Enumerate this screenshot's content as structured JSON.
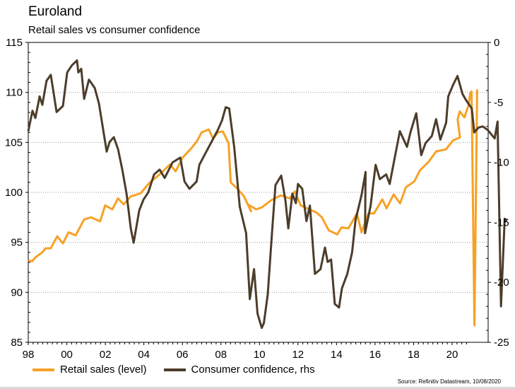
{
  "chart_data": {
    "type": "line",
    "title": "Euroland",
    "subtitle": "Retail sales vs consumer confidence",
    "xlabel": "",
    "ylabel": "",
    "x_ticks": [
      "98",
      "00",
      "02",
      "04",
      "06",
      "08",
      "10",
      "12",
      "14",
      "16",
      "18",
      "20"
    ],
    "x_tick_years": [
      1998,
      2000,
      2002,
      2004,
      2006,
      2008,
      2010,
      2012,
      2014,
      2016,
      2018,
      2020
    ],
    "xlim": [
      1998,
      2020.85
    ],
    "left_axis": {
      "ylim": [
        85,
        115
      ],
      "ticks": [
        85,
        90,
        95,
        100,
        105,
        110,
        115
      ]
    },
    "right_axis": {
      "ylim": [
        -25,
        0
      ],
      "ticks": [
        -25,
        -20,
        -15,
        -10,
        -5,
        0
      ]
    },
    "grid": "horizontal dotted",
    "legend_position": "bottom-left",
    "series": [
      {
        "name": "Retail sales (level)",
        "axis": "left",
        "color": "#F7A125",
        "points": [
          [
            1998.0,
            93.2
          ],
          [
            1998.2,
            93.1
          ],
          [
            1998.37,
            93.5
          ],
          [
            1998.73,
            94.0
          ],
          [
            1998.9,
            94.4
          ],
          [
            1999.17,
            94.4
          ],
          [
            1999.5,
            95.6
          ],
          [
            1999.8,
            94.9
          ],
          [
            2000.09,
            96.0
          ],
          [
            2000.46,
            95.7
          ],
          [
            2000.9,
            97.3
          ],
          [
            2001.26,
            97.5
          ],
          [
            2001.73,
            97.1
          ],
          [
            2001.99,
            98.7
          ],
          [
            2002.36,
            98.3
          ],
          [
            2002.66,
            99.4
          ],
          [
            2002.95,
            98.8
          ],
          [
            2003.32,
            99.6
          ],
          [
            2003.83,
            99.9
          ],
          [
            2004.31,
            101.0
          ],
          [
            2004.82,
            101.8
          ],
          [
            2005.36,
            102.8
          ],
          [
            2005.65,
            102.1
          ],
          [
            2006.02,
            103.5
          ],
          [
            2006.46,
            104.4
          ],
          [
            2006.75,
            105.1
          ],
          [
            2007.0,
            106.0
          ],
          [
            2007.37,
            106.3
          ],
          [
            2007.59,
            105.4
          ],
          [
            2007.85,
            106.0
          ],
          [
            2008.1,
            106.1
          ],
          [
            2008.4,
            104.9
          ],
          [
            2008.51,
            101.0
          ],
          [
            2008.84,
            100.4
          ],
          [
            2009.2,
            99.6
          ],
          [
            2009.57,
            98.1
          ],
          [
            2009.4,
            98.8
          ],
          [
            2009.83,
            98.3
          ],
          [
            2010.13,
            98.5
          ],
          [
            2010.6,
            99.2
          ],
          [
            2011.11,
            99.7
          ],
          [
            2011.58,
            99.4
          ],
          [
            2011.84,
            100.1
          ],
          [
            2012.14,
            98.7
          ],
          [
            2012.58,
            98.3
          ],
          [
            2012.95,
            98.0
          ],
          [
            2013.24,
            97.5
          ],
          [
            2013.6,
            96.2
          ],
          [
            2014.04,
            95.8
          ],
          [
            2014.26,
            96.5
          ],
          [
            2014.62,
            96.4
          ],
          [
            2015.06,
            97.9
          ],
          [
            2015.3,
            96.0
          ],
          [
            2015.66,
            97.9
          ],
          [
            2015.95,
            97.9
          ],
          [
            2016.38,
            99.3
          ],
          [
            2016.6,
            98.4
          ],
          [
            2016.97,
            99.8
          ],
          [
            2017.3,
            98.9
          ],
          [
            2017.6,
            100.5
          ],
          [
            2018.04,
            101.1
          ],
          [
            2018.33,
            102.2
          ],
          [
            2018.8,
            103.1
          ],
          [
            2019.17,
            104.1
          ],
          [
            2019.68,
            104.3
          ],
          [
            2020.05,
            105.2
          ],
          [
            2020.41,
            105.5
          ],
          [
            2020.29,
            107.3
          ],
          [
            2020.4,
            108.1
          ],
          [
            2020.64,
            107.5
          ],
          [
            2020.85,
            108.7
          ],
          [
            2020.94,
            109.9
          ],
          [
            2021.01,
            110.1
          ],
          [
            2021.16,
            86.7
          ],
          [
            2021.3,
            110.3
          ]
        ]
      },
      {
        "name": "Consumer confidence, rhs",
        "axis": "right",
        "color": "#4B3D2A",
        "points": [
          [
            1998.0,
            -7.4
          ],
          [
            1998.22,
            -5.7
          ],
          [
            1998.37,
            -6.3
          ],
          [
            1998.59,
            -4.5
          ],
          [
            1998.73,
            -5.2
          ],
          [
            1998.95,
            -3.2
          ],
          [
            1999.17,
            -2.7
          ],
          [
            1999.47,
            -5.8
          ],
          [
            1999.8,
            -5.3
          ],
          [
            2000.02,
            -2.5
          ],
          [
            2000.27,
            -1.9
          ],
          [
            2000.53,
            -1.5
          ],
          [
            2000.6,
            -2.5
          ],
          [
            2000.75,
            -2.2
          ],
          [
            2000.9,
            -4.7
          ],
          [
            2001.15,
            -3.1
          ],
          [
            2001.45,
            -3.8
          ],
          [
            2001.67,
            -5.1
          ],
          [
            2001.89,
            -7.3
          ],
          [
            2002.07,
            -9.1
          ],
          [
            2002.22,
            -8.3
          ],
          [
            2002.44,
            -7.9
          ],
          [
            2002.66,
            -8.9
          ],
          [
            2002.88,
            -10.6
          ],
          [
            2003.1,
            -12.6
          ],
          [
            2003.32,
            -15.5
          ],
          [
            2003.47,
            -16.7
          ],
          [
            2003.76,
            -14.0
          ],
          [
            2003.98,
            -13.1
          ],
          [
            2004.23,
            -12.5
          ],
          [
            2004.53,
            -11.0
          ],
          [
            2004.82,
            -10.6
          ],
          [
            2005.08,
            -11.3
          ],
          [
            2005.49,
            -10.0
          ],
          [
            2005.89,
            -9.6
          ],
          [
            2006.11,
            -11.6
          ],
          [
            2006.37,
            -12.2
          ],
          [
            2006.74,
            -11.6
          ],
          [
            2006.88,
            -10.2
          ],
          [
            2007.18,
            -9.3
          ],
          [
            2007.51,
            -8.3
          ],
          [
            2007.84,
            -7.3
          ],
          [
            2008.06,
            -6.5
          ],
          [
            2008.25,
            -5.4
          ],
          [
            2008.43,
            -5.5
          ],
          [
            2008.69,
            -8.7
          ],
          [
            2008.98,
            -13.7
          ],
          [
            2009.31,
            -15.9
          ],
          [
            2009.5,
            -21.4
          ],
          [
            2009.72,
            -18.9
          ],
          [
            2009.9,
            -22.6
          ],
          [
            2010.12,
            -23.8
          ],
          [
            2010.23,
            -23.4
          ],
          [
            2010.43,
            -21.0
          ],
          [
            2010.65,
            -15.9
          ],
          [
            2010.83,
            -11.9
          ],
          [
            2011.13,
            -11.1
          ],
          [
            2011.35,
            -13.2
          ],
          [
            2011.5,
            -15.5
          ],
          [
            2011.71,
            -12.6
          ],
          [
            2011.89,
            -13.4
          ],
          [
            2012.0,
            -11.8
          ],
          [
            2012.22,
            -12.2
          ],
          [
            2012.44,
            -14.9
          ],
          [
            2012.62,
            -13.6
          ],
          [
            2012.88,
            -19.3
          ],
          [
            2013.17,
            -18.9
          ],
          [
            2013.4,
            -17.1
          ],
          [
            2013.54,
            -18.3
          ],
          [
            2013.72,
            -18.1
          ],
          [
            2013.91,
            -21.8
          ],
          [
            2014.13,
            -22.1
          ],
          [
            2014.28,
            -20.5
          ],
          [
            2014.56,
            -19.3
          ],
          [
            2014.81,
            -17.5
          ],
          [
            2014.99,
            -14.8
          ],
          [
            2015.29,
            -12.8
          ],
          [
            2015.51,
            -10.8
          ],
          [
            2015.48,
            -15.9
          ],
          [
            2015.77,
            -13.6
          ],
          [
            2016.03,
            -10.2
          ],
          [
            2016.25,
            -11.4
          ],
          [
            2016.58,
            -11.0
          ],
          [
            2016.76,
            -11.8
          ],
          [
            2017.29,
            -7.4
          ],
          [
            2017.66,
            -8.7
          ],
          [
            2017.84,
            -7.5
          ],
          [
            2018.14,
            -5.9
          ],
          [
            2018.4,
            -9.4
          ],
          [
            2018.62,
            -8.4
          ],
          [
            2018.95,
            -7.8
          ],
          [
            2019.17,
            -6.4
          ],
          [
            2019.39,
            -8.1
          ],
          [
            2019.69,
            -6.7
          ],
          [
            2019.8,
            -4.5
          ],
          [
            2020.06,
            -3.5
          ],
          [
            2020.28,
            -2.8
          ],
          [
            2020.54,
            -4.3
          ],
          [
            2020.72,
            -4.8
          ],
          [
            2021.02,
            -5.5
          ],
          [
            2021.15,
            -7.5
          ],
          [
            2021.37,
            -7.1
          ],
          [
            2021.59,
            -7.0
          ],
          [
            2021.85,
            -7.3
          ],
          [
            2022.21,
            -8.0
          ],
          [
            2022.36,
            -6.6
          ],
          [
            2022.54,
            -22.0
          ],
          [
            2022.73,
            -14.7
          ],
          [
            2022.84,
            -14.9
          ]
        ]
      }
    ]
  },
  "source": "Source: Refinitiv Datastream, 10/08/2020"
}
